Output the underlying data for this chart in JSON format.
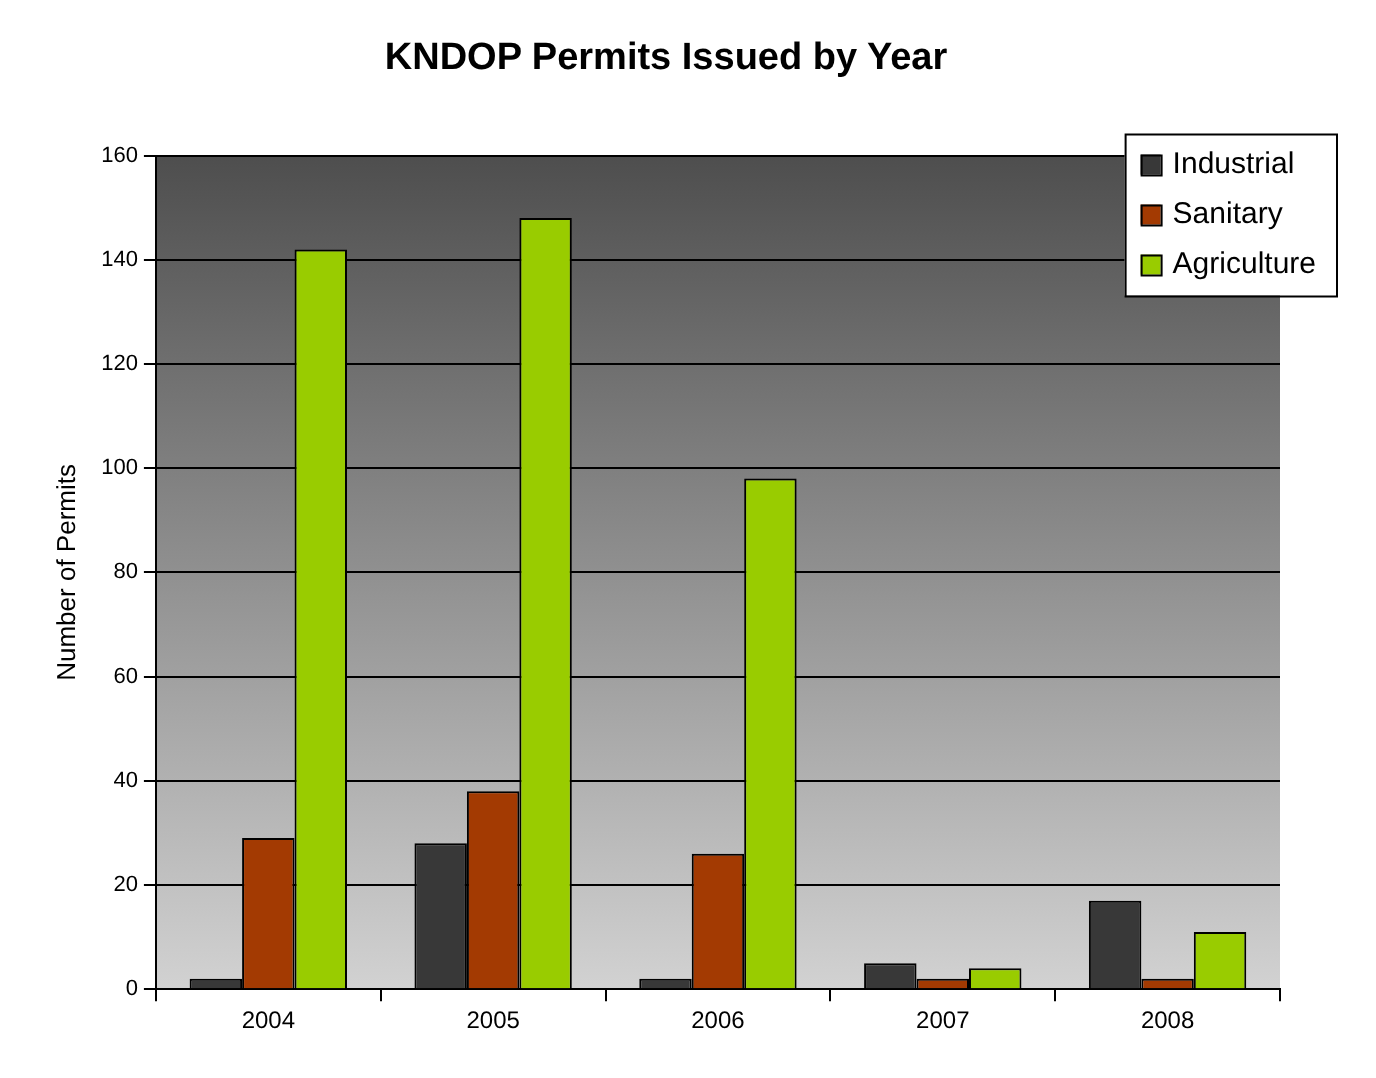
{
  "chart_data": {
    "type": "bar",
    "title": "KNDOP Permits Issued by Year",
    "ylabel": "Number of Permits",
    "categories": [
      "2004",
      "2005",
      "2006",
      "2007",
      "2008"
    ],
    "series": [
      {
        "name": "Industrial",
        "color": "#383838",
        "values": [
          2,
          28,
          2,
          5,
          17
        ]
      },
      {
        "name": "Sanitary",
        "color": "#a33a02",
        "values": [
          29,
          38,
          26,
          2,
          2
        ]
      },
      {
        "name": "Agriculture",
        "color": "#99cc00",
        "values": [
          142,
          148,
          98,
          4,
          11
        ]
      }
    ],
    "ylim": [
      0,
      160
    ],
    "yticks": [
      0,
      20,
      40,
      60,
      80,
      100,
      120,
      140,
      160
    ],
    "grid": "y",
    "legend": "top right"
  }
}
